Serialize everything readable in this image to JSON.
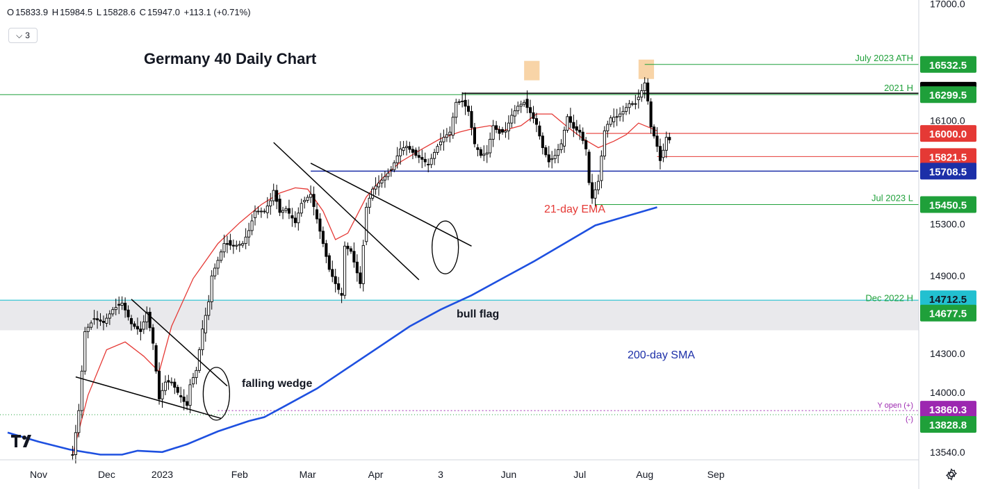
{
  "header": {
    "open_label": "O",
    "open": "15833.9",
    "high_label": "H",
    "high": "15984.5",
    "low_label": "L",
    "low": "15828.6",
    "close_label": "C",
    "close": "15947.0",
    "change": "+113.1 (+0.71%)",
    "indicators_count": "3"
  },
  "colors": {
    "bull": "#ffffff",
    "bear": "#000000",
    "ema": "#e53935",
    "sma": "#1e50e0",
    "green_line": "#1fa03a",
    "red_line": "#e53935",
    "blue_line": "#1c2fa8",
    "cyan_line": "#22c0d0"
  },
  "chart_data": {
    "type": "candlestick",
    "title": "Germany 40 Daily Chart",
    "ylim": [
      13480,
      17030
    ],
    "y_ticks": [
      "17000.0",
      "16100.0",
      "15300.0",
      "14900.0",
      "14300.0",
      "14000.0",
      "13540.0"
    ],
    "x_ticks": [
      "Nov",
      "Dec",
      "2023",
      "Feb",
      "Mar",
      "Apr",
      "3",
      "Jun",
      "Jul",
      "Aug",
      "Sep"
    ],
    "x_tick_index": [
      -10,
      12,
      30,
      55,
      77,
      99,
      120,
      142,
      165,
      186,
      209
    ],
    "series": [
      {
        "name": "21-day EMA",
        "points": [
          [
            1,
            13520
          ],
          [
            6,
            13980
          ],
          [
            12,
            14330
          ],
          [
            18,
            14390
          ],
          [
            24,
            14280
          ],
          [
            29,
            14160
          ],
          [
            33,
            14510
          ],
          [
            40,
            14880
          ],
          [
            48,
            15150
          ],
          [
            55,
            15310
          ],
          [
            62,
            15450
          ],
          [
            68,
            15540
          ],
          [
            73,
            15580
          ],
          [
            77,
            15570
          ],
          [
            82,
            15400
          ],
          [
            86,
            15180
          ],
          [
            90,
            15230
          ],
          [
            96,
            15510
          ],
          [
            101,
            15650
          ],
          [
            107,
            15780
          ],
          [
            114,
            15880
          ],
          [
            120,
            15960
          ],
          [
            126,
            16010
          ],
          [
            131,
            16040
          ],
          [
            136,
            16060
          ],
          [
            140,
            16020
          ],
          [
            146,
            16060
          ],
          [
            151,
            16150
          ],
          [
            156,
            16150
          ],
          [
            161,
            16050
          ],
          [
            166,
            15960
          ],
          [
            171,
            15890
          ],
          [
            176,
            15940
          ],
          [
            180,
            15990
          ],
          [
            184,
            16080
          ],
          [
            187,
            16050
          ],
          [
            190,
            16020
          ]
        ]
      },
      {
        "name": "200-day SMA",
        "points": [
          [
            -20,
            13690
          ],
          [
            -10,
            13620
          ],
          [
            0,
            13560
          ],
          [
            10,
            13520
          ],
          [
            17,
            13520
          ],
          [
            22,
            13550
          ],
          [
            30,
            13540
          ],
          [
            38,
            13600
          ],
          [
            48,
            13700
          ],
          [
            58,
            13780
          ],
          [
            63,
            13810
          ],
          [
            70,
            13900
          ],
          [
            80,
            14030
          ],
          [
            90,
            14190
          ],
          [
            100,
            14350
          ],
          [
            110,
            14510
          ],
          [
            120,
            14640
          ],
          [
            130,
            14750
          ],
          [
            140,
            14880
          ],
          [
            150,
            15010
          ],
          [
            160,
            15150
          ],
          [
            170,
            15290
          ],
          [
            180,
            15360
          ],
          [
            190,
            15430
          ]
        ]
      }
    ],
    "levels": [
      {
        "value": 16532.5,
        "label": "16532.5",
        "text": "July 2023 ATH"
      },
      {
        "value": 16333.5,
        "label": "16333.5",
        "text": ""
      },
      {
        "value": 16299.5,
        "label": "16299.5",
        "text": "2021 H"
      },
      {
        "value": 16000.0,
        "label": "16000.0",
        "text": ""
      },
      {
        "value": 15821.5,
        "label": "15821.5",
        "text": ""
      },
      {
        "value": 15708.5,
        "label": "15708.5",
        "text": ""
      },
      {
        "value": 15450.5,
        "label": "15450.5",
        "text": "Jul 2023 L"
      },
      {
        "value": 14712.5,
        "label": "14712.5",
        "text": ""
      },
      {
        "value": 14677.5,
        "label": "14677.5",
        "text": "Dec 2022 H"
      },
      {
        "value": 13860.3,
        "label": "13860.3",
        "text": "Y open (+)"
      },
      {
        "value": 13828.8,
        "label": "13828.8",
        "text": "(-)"
      }
    ],
    "annotations": [
      "falling wedge",
      "bull flag",
      "21-day EMA",
      "200-day SMA"
    ],
    "candle_path": [
      [
        1,
        13520
      ],
      [
        3,
        13860
      ],
      [
        5,
        14470
      ],
      [
        8,
        14570
      ],
      [
        11,
        14540
      ],
      [
        14,
        14640
      ],
      [
        17,
        14690
      ],
      [
        20,
        14530
      ],
      [
        23,
        14470
      ],
      [
        25,
        14620
      ],
      [
        27,
        14380
      ],
      [
        29,
        13950
      ],
      [
        31,
        14080
      ],
      [
        33,
        14080
      ],
      [
        35,
        14000
      ],
      [
        37,
        13930
      ],
      [
        38,
        13900
      ],
      [
        39,
        14060
      ],
      [
        41,
        14170
      ],
      [
        43,
        14490
      ],
      [
        45,
        14700
      ],
      [
        46,
        14900
      ],
      [
        48,
        15020
      ],
      [
        50,
        15150
      ],
      [
        53,
        15130
      ],
      [
        56,
        15150
      ],
      [
        58,
        15250
      ],
      [
        60,
        15400
      ],
      [
        63,
        15400
      ],
      [
        65,
        15480
      ],
      [
        66,
        15560
      ],
      [
        68,
        15390
      ],
      [
        70,
        15420
      ],
      [
        73,
        15310
      ],
      [
        75,
        15460
      ],
      [
        78,
        15530
      ],
      [
        80,
        15340
      ],
      [
        82,
        15150
      ],
      [
        84,
        14950
      ],
      [
        86,
        14840
      ],
      [
        88,
        14750
      ],
      [
        89,
        15130
      ],
      [
        91,
        15090
      ],
      [
        94,
        14840
      ],
      [
        96,
        15430
      ],
      [
        98,
        15570
      ],
      [
        101,
        15640
      ],
      [
        104,
        15720
      ],
      [
        107,
        15880
      ],
      [
        109,
        15900
      ],
      [
        112,
        15830
      ],
      [
        114,
        15800
      ],
      [
        116,
        15760
      ],
      [
        119,
        15900
      ],
      [
        121,
        15970
      ],
      [
        123,
        16010
      ],
      [
        125,
        16240
      ],
      [
        127,
        16250
      ],
      [
        129,
        16170
      ],
      [
        131,
        15920
      ],
      [
        133,
        15830
      ],
      [
        135,
        15850
      ],
      [
        137,
        16060
      ],
      [
        139,
        16000
      ],
      [
        141,
        16020
      ],
      [
        143,
        16140
      ],
      [
        145,
        16210
      ],
      [
        147,
        16240
      ],
      [
        149,
        16160
      ],
      [
        151,
        16070
      ],
      [
        153,
        15890
      ],
      [
        155,
        15780
      ],
      [
        157,
        15830
      ],
      [
        159,
        15920
      ],
      [
        161,
        16130
      ],
      [
        163,
        16040
      ],
      [
        165,
        16010
      ],
      [
        167,
        15880
      ],
      [
        168,
        15620
      ],
      [
        169,
        15500
      ],
      [
        171,
        15630
      ],
      [
        173,
        16020
      ],
      [
        175,
        16120
      ],
      [
        177,
        16130
      ],
      [
        179,
        16170
      ],
      [
        181,
        16230
      ],
      [
        183,
        16230
      ],
      [
        185,
        16330
      ],
      [
        186,
        16390
      ],
      [
        187,
        16250
      ],
      [
        188,
        16050
      ],
      [
        189,
        15980
      ],
      [
        190,
        15900
      ],
      [
        191,
        15790
      ],
      [
        192,
        15870
      ],
      [
        193,
        15970
      ],
      [
        194,
        15950
      ]
    ],
    "current_index": 194
  }
}
